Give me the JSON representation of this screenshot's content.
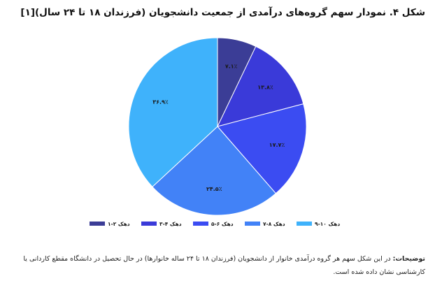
{
  "title": {
    "lead": "شکل ۴.",
    "text": "نمودار سهم گروه‌های درآمدی از جمعیت دانشجویان (فرزندان ۱۸ تا ۲۴ سال)[۱]"
  },
  "colors": {
    "slice_1": "#3b3d96",
    "slice_2": "#3a3ad9",
    "slice_3": "#3b4cf2",
    "slice_4": "#4282f7",
    "slice_5": "#3fb2fb",
    "stroke": "#ffffff"
  },
  "chart_data": {
    "type": "pie",
    "title": "نمودار سهم گروه‌های درآمدی از جمعیت دانشجویان (فرزندان ۱۸ تا ۲۴ سال)[۱]",
    "legend_position": "bottom",
    "slices": [
      {
        "name": "دهک ۲-۱",
        "value": 7.1,
        "label": "۷.۱٪"
      },
      {
        "name": "دهک ۴-۳",
        "value": 13.8,
        "label": "۱۳.۸٪"
      },
      {
        "name": "دهک ۶-۵",
        "value": 17.7,
        "label": "۱۷.۷٪"
      },
      {
        "name": "دهک ۸-۷",
        "value": 24.5,
        "label": "۲۴.۵٪"
      },
      {
        "name": "دهک ۱۰-۹",
        "value": 36.9,
        "label": "۳۶.۹٪"
      }
    ]
  },
  "caption": {
    "lead": "توضیحات:",
    "text": "در این شکل سهم هر گروه درآمدی خانوار از دانشجویان (فرزندان ۱۸ تا ۲۴ ساله خانوارها) در حال تحصیل در دانشگاه مقطع کاردانی یا کارشناسی نشان داده شده است."
  }
}
